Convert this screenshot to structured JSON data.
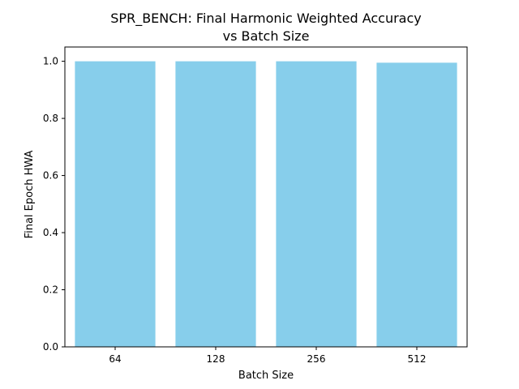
{
  "chart_data": {
    "type": "bar",
    "title": [
      "SPR_BENCH: Final Harmonic Weighted Accuracy",
      "vs Batch Size"
    ],
    "xlabel": "Batch Size",
    "ylabel": "Final Epoch HWA",
    "categories": [
      "64",
      "128",
      "256",
      "512"
    ],
    "values": [
      1.0,
      1.0,
      1.0,
      0.995
    ],
    "ylim": [
      0,
      1.05
    ],
    "yticks": [
      0.0,
      0.2,
      0.4,
      0.6,
      0.8,
      1.0
    ],
    "ytick_labels": [
      "0.0",
      "0.2",
      "0.4",
      "0.6",
      "0.8",
      "1.0"
    ],
    "bar_color": "#87CEEB",
    "grid": false,
    "legend": "none"
  }
}
